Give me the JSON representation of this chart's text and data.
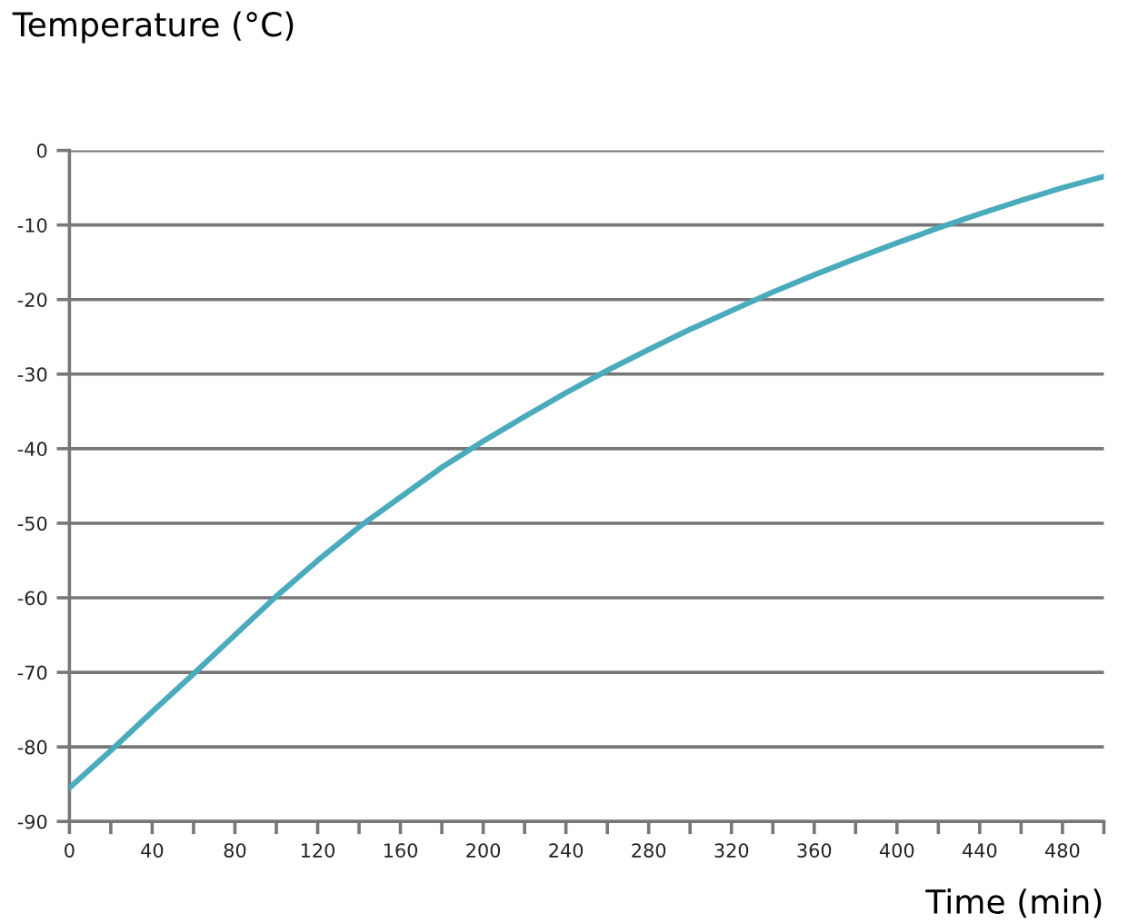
{
  "chart_data": {
    "type": "line",
    "xlabel": "Time (min)",
    "ylabel": "Temperature (°C)",
    "x": [
      0,
      20,
      40,
      60,
      80,
      100,
      120,
      140,
      160,
      180,
      200,
      220,
      240,
      260,
      280,
      300,
      320,
      340,
      360,
      380,
      400,
      420,
      440,
      460,
      480,
      500
    ],
    "series": [
      {
        "color": "#4aabbd",
        "values": [
          -85.5,
          -80.5,
          -75.3,
          -70.2,
          -65,
          -59.8,
          -55,
          -50.5,
          -46.5,
          -42.5,
          -39,
          -35.7,
          -32.5,
          -29.5,
          -26.7,
          -24,
          -21.5,
          -19,
          -16.7,
          -14.5,
          -12.4,
          -10.4,
          -8.5,
          -6.7,
          -5,
          -3.5
        ]
      }
    ],
    "xlim": [
      0,
      500
    ],
    "ylim": [
      -90,
      0
    ],
    "xticks": [
      0,
      {
        "value": 20,
        "label": null
      },
      40,
      {
        "value": 60,
        "label": null
      },
      80,
      {
        "value": 100,
        "label": null
      },
      120,
      {
        "value": 140,
        "label": null
      },
      160,
      {
        "value": 180,
        "label": null
      },
      200,
      {
        "value": 220,
        "label": null
      },
      240,
      {
        "value": 260,
        "label": null
      },
      280,
      {
        "value": 300,
        "label": null
      },
      320,
      {
        "value": 340,
        "label": null
      },
      360,
      {
        "value": 380,
        "label": null
      },
      400,
      {
        "value": 420,
        "label": null
      },
      440,
      {
        "value": 460,
        "label": null
      },
      480,
      {
        "value": 500,
        "label": null
      }
    ],
    "yticks": [
      -90,
      -80,
      -70,
      -60,
      -50,
      -40,
      -30,
      -20,
      -10,
      0
    ],
    "grid": "y",
    "legend": false,
    "marker": "none",
    "line_style": "solid"
  }
}
